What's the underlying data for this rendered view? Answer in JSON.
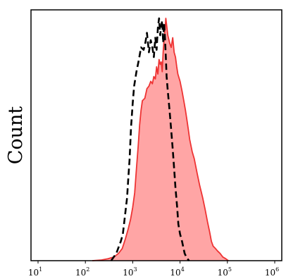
{
  "chart_data": {
    "type": "area",
    "title": "",
    "xlabel": "",
    "ylabel": "Count",
    "x_scale": "log",
    "xlim": [
      10,
      1000000
    ],
    "ylim": [
      0,
      1
    ],
    "grid": false,
    "legend": "none",
    "x_ticks": [
      {
        "base": "10",
        "exp": "1",
        "value": 10
      },
      {
        "base": "10",
        "exp": "2",
        "value": 100
      },
      {
        "base": "10",
        "exp": "3",
        "value": 1000
      },
      {
        "base": "10",
        "exp": "4",
        "value": 10000
      },
      {
        "base": "10",
        "exp": "5",
        "value": 100000
      },
      {
        "base": "10",
        "exp": "6",
        "value": 1000000
      }
    ],
    "series": [
      {
        "style": "dashed-black",
        "color": "#000000",
        "x": [
          350,
          450,
          560,
          620,
          700,
          760,
          800,
          860,
          920,
          1000,
          1070,
          1200,
          1350,
          1500,
          1700,
          1850,
          2000,
          2200,
          2400,
          2600,
          2800,
          3000,
          3200,
          3400,
          3600,
          3800,
          4000,
          4200,
          4400,
          4600,
          4800,
          5000,
          5200,
          5500,
          6000,
          6500,
          7000,
          7500,
          8000,
          8700,
          9200,
          10000,
          11000,
          12500,
          14000,
          15500
        ],
        "y": [
          0,
          0.03,
          0.08,
          0.11,
          0.2,
          0.26,
          0.33,
          0.42,
          0.55,
          0.65,
          0.72,
          0.78,
          0.83,
          0.88,
          0.87,
          0.9,
          0.94,
          0.86,
          0.91,
          0.88,
          0.84,
          0.92,
          0.87,
          0.96,
          1.0,
          0.93,
          0.97,
          0.99,
          0.9,
          0.98,
          0.92,
          0.84,
          0.76,
          0.7,
          0.62,
          0.54,
          0.46,
          0.38,
          0.3,
          0.22,
          0.15,
          0.11,
          0.08,
          0.03,
          0.01,
          0
        ]
      },
      {
        "style": "filled-red",
        "color": "#ee3333",
        "fill": "#ffa5a5",
        "x": [
          140,
          220,
          300,
          400,
          500,
          600,
          700,
          800,
          900,
          1000,
          1100,
          1200,
          1300,
          1400,
          1500,
          1600,
          1800,
          2000,
          2200,
          2400,
          2600,
          2800,
          3000,
          3200,
          3400,
          3600,
          3800,
          4000,
          4200,
          4400,
          4600,
          4800,
          5000,
          5500,
          6000,
          6500,
          7000,
          7500,
          8000,
          8500,
          9000,
          10000,
          11000,
          12000,
          13000,
          14000,
          15000,
          16000,
          18000,
          20000,
          23000,
          26000,
          30000,
          34000,
          38000,
          42000,
          46000,
          50000,
          56000,
          62000,
          70000,
          80000,
          92000,
          105000
        ],
        "y": [
          0,
          0.003,
          0.008,
          0.015,
          0.03,
          0.05,
          0.09,
          0.13,
          0.17,
          0.22,
          0.28,
          0.38,
          0.47,
          0.56,
          0.62,
          0.66,
          0.67,
          0.71,
          0.72,
          0.74,
          0.73,
          0.76,
          0.75,
          0.8,
          0.77,
          0.83,
          0.81,
          0.82,
          0.78,
          0.86,
          0.91,
          0.95,
          1.0,
          0.93,
          0.9,
          0.88,
          0.92,
          0.86,
          0.84,
          0.8,
          0.77,
          0.74,
          0.7,
          0.66,
          0.62,
          0.58,
          0.54,
          0.5,
          0.45,
          0.42,
          0.36,
          0.31,
          0.26,
          0.21,
          0.16,
          0.12,
          0.08,
          0.06,
          0.05,
          0.04,
          0.03,
          0.015,
          0.008,
          0
        ]
      }
    ]
  }
}
